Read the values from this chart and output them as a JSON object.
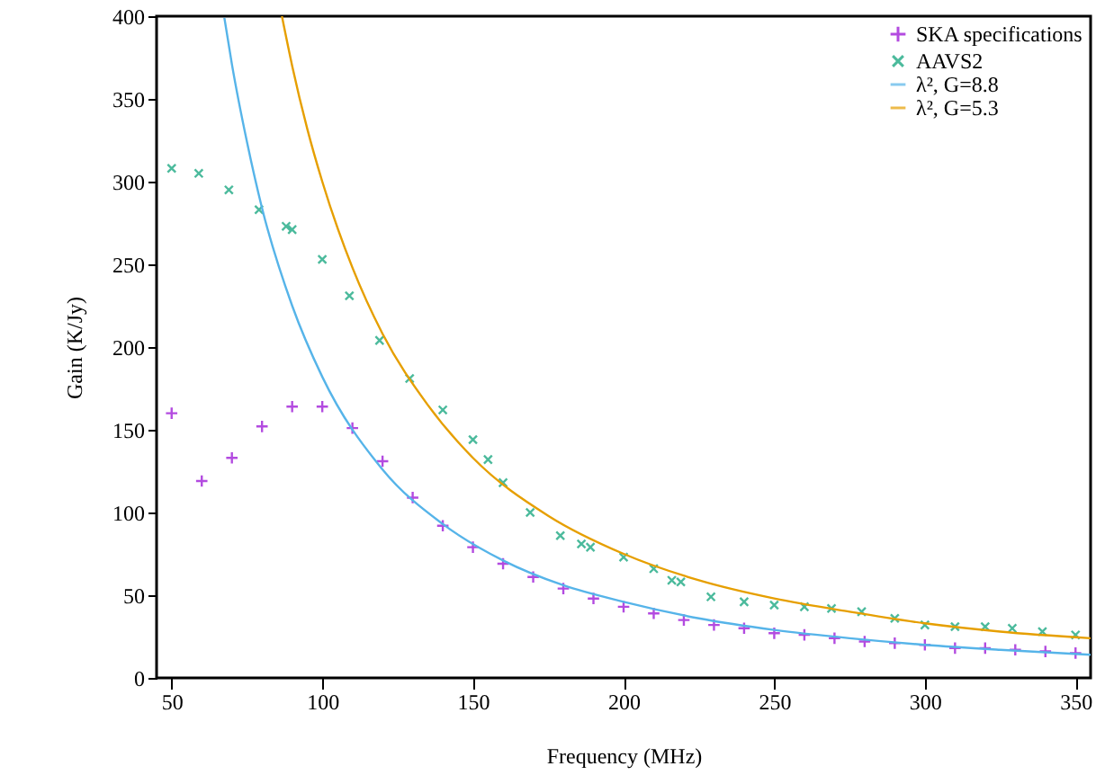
{
  "chart_data": {
    "type": "scatter",
    "xlabel": "Frequency (MHz)",
    "ylabel": "Gain (K/Jy)",
    "xlim": [
      45,
      355
    ],
    "ylim": [
      0,
      400
    ],
    "xticks": [
      50,
      100,
      150,
      200,
      250,
      300,
      350
    ],
    "yticks": [
      0,
      50,
      100,
      150,
      200,
      250,
      300,
      350,
      400
    ],
    "legend": "top right",
    "grid": false,
    "series": [
      {
        "name": "SKA specifications",
        "marker": "cross",
        "color": "#9400d3",
        "x": [
          50,
          60,
          70,
          80,
          90,
          100,
          110,
          120,
          130,
          140,
          150,
          160,
          170,
          180,
          190,
          200,
          210,
          220,
          230,
          240,
          250,
          260,
          270,
          280,
          290,
          300,
          310,
          320,
          330,
          340,
          350
        ],
        "values": [
          160,
          119,
          133,
          152,
          164,
          164,
          151,
          131,
          109,
          92,
          79,
          69,
          61,
          54,
          48,
          43,
          39,
          35,
          32,
          30,
          27,
          26,
          24,
          22,
          21,
          20,
          18,
          18,
          17,
          16,
          15
        ]
      },
      {
        "name": "AAVS2",
        "marker": "x",
        "color": "#009e73",
        "x": [
          50,
          59,
          69,
          79,
          88,
          90,
          100,
          109,
          119,
          129,
          140,
          150,
          155,
          160,
          169,
          179,
          186,
          189,
          200,
          210,
          216,
          219,
          229,
          240,
          250,
          260,
          269,
          279,
          290,
          300,
          310,
          320,
          329,
          339,
          350
        ],
        "values": [
          308,
          305,
          295,
          283,
          273,
          271,
          253,
          231,
          204,
          181,
          162,
          144,
          132,
          118,
          100,
          86,
          81,
          79,
          73,
          66,
          59,
          58,
          49,
          46,
          44,
          43,
          42,
          40,
          36,
          32,
          31,
          31,
          30,
          28,
          26
        ]
      },
      {
        "name": "λ², G=8.8",
        "type": "line",
        "color": "#56b4e9",
        "x": [
          67.5,
          70,
          75,
          80,
          90,
          100,
          120,
          140,
          160,
          180,
          200,
          225,
          250,
          275,
          300,
          325,
          355
        ],
        "values": [
          399,
          371,
          324,
          284,
          225,
          182,
          126,
          93,
          71,
          56,
          46,
          36,
          29,
          24,
          20,
          17,
          14
        ]
      },
      {
        "name": "λ², G=5.3",
        "type": "line",
        "color": "#e69f00",
        "x": [
          86.6,
          90,
          95,
          100,
          110,
          120,
          135,
          150,
          175,
          200,
          225,
          250,
          275,
          300,
          325,
          355
        ],
        "values": [
          400,
          370,
          332,
          300,
          248,
          208,
          165,
          133,
          98,
          75,
          59,
          48,
          40,
          33,
          28,
          24
        ]
      }
    ]
  }
}
